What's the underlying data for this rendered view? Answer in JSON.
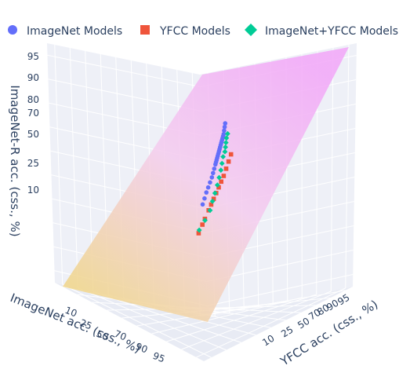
{
  "chart_data": {
    "type": "scatter",
    "subtype": "3d-scatter-with-plane",
    "title": "",
    "legend": {
      "placement": "top",
      "entries": [
        {
          "name": "ImageNet Models",
          "color": "#636efa",
          "symbol": "circle"
        },
        {
          "name": "YFCC Models",
          "color": "#ef553b",
          "symbol": "square"
        },
        {
          "name": "ImageNet+YFCC Models",
          "color": "#00cc96",
          "symbol": "diamond"
        }
      ]
    },
    "axes": {
      "x": {
        "label": "ImageNet acc. (css., %)",
        "ticks": [
          "10",
          "25",
          "50",
          "70",
          "90",
          "95"
        ]
      },
      "y": {
        "label": "YFCC acc. (css., %)",
        "ticks": [
          "10",
          "25",
          "50",
          "70",
          "80",
          "90",
          "95"
        ]
      },
      "z": {
        "label": "ImageNet-R acc. (css., %)",
        "ticks": [
          "10",
          "25",
          "50",
          "70",
          "80",
          "90",
          "95"
        ]
      }
    },
    "grid": true,
    "plane": {
      "colorscale": [
        "#f0d58a",
        "#f4ccee",
        "#f2a6f8"
      ]
    },
    "series": [
      {
        "name": "ImageNet Models",
        "color": "#636efa",
        "symbol": "circle",
        "x": [
          45,
          50,
          55,
          58,
          61,
          64,
          66,
          68,
          70,
          71,
          72,
          73,
          74,
          75,
          76,
          77,
          78,
          79,
          80,
          81,
          82,
          83,
          84,
          85,
          86,
          87
        ],
        "y": [
          40,
          44,
          48,
          51,
          54,
          57,
          59,
          61,
          63,
          64,
          65,
          66,
          67,
          68,
          69,
          70,
          71,
          72,
          73,
          74,
          75,
          76,
          77,
          78,
          79,
          80
        ],
        "z": [
          12,
          14,
          16,
          18,
          20,
          22,
          24,
          26,
          28,
          29,
          30,
          31,
          32,
          33,
          34,
          35,
          36,
          37,
          38,
          39,
          40,
          41,
          42,
          44,
          46,
          48
        ]
      },
      {
        "name": "YFCC Models",
        "color": "#ef553b",
        "symbol": "square",
        "x": [
          12,
          18,
          22,
          28,
          32,
          36,
          40,
          44,
          48,
          52,
          56,
          60,
          64
        ],
        "y": [
          20,
          26,
          30,
          36,
          40,
          44,
          48,
          52,
          56,
          60,
          64,
          68,
          72
        ],
        "z": [
          4,
          7,
          9,
          12,
          14,
          16,
          18,
          20,
          22,
          24,
          27,
          30,
          33
        ]
      },
      {
        "name": "ImageNet+YFCC Models",
        "color": "#00cc96",
        "symbol": "diamond",
        "x": [
          15,
          22,
          30,
          38,
          44,
          50,
          55,
          60,
          64,
          68,
          71,
          74,
          77,
          80,
          82
        ],
        "y": [
          22,
          30,
          38,
          44,
          49,
          54,
          58,
          62,
          65,
          68,
          71,
          73,
          75,
          77,
          79
        ],
        "z": [
          5,
          8,
          11,
          14,
          17,
          20,
          23,
          26,
          29,
          32,
          34,
          36,
          38,
          40,
          42
        ]
      }
    ]
  }
}
